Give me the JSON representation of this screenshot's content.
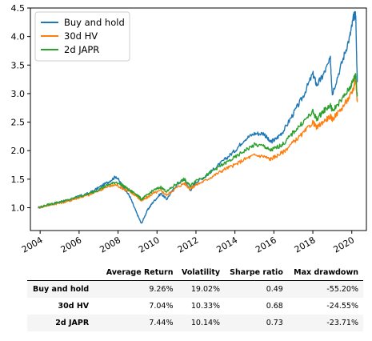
{
  "chart_data": {
    "type": "line",
    "title": "",
    "xlabel": "",
    "ylabel": "",
    "xlim": [
      2003.5,
      2020.75
    ],
    "ylim": [
      0.6,
      4.5
    ],
    "x_ticks": [
      2004,
      2006,
      2008,
      2010,
      2012,
      2014,
      2016,
      2018,
      2020
    ],
    "y_ticks": [
      1.0,
      1.5,
      2.0,
      2.5,
      3.0,
      3.5,
      4.0,
      4.5
    ],
    "y_tick_labels": [
      "1.0",
      "1.5",
      "2.0",
      "2.5",
      "3.0",
      "3.5",
      "4.0",
      "4.5"
    ],
    "grid": false,
    "legend": "top-left",
    "series": [
      {
        "name": "Buy and hold",
        "color": "#1f77b4",
        "x": [
          2003.9,
          2004.5,
          2005.0,
          2005.5,
          2006.0,
          2006.5,
          2007.0,
          2007.5,
          2007.9,
          2008.3,
          2008.6,
          2008.9,
          2009.2,
          2009.5,
          2009.8,
          2010.2,
          2010.5,
          2011.0,
          2011.4,
          2011.7,
          2012.0,
          2012.5,
          2013.0,
          2013.5,
          2014.0,
          2014.5,
          2015.0,
          2015.5,
          2015.8,
          2016.1,
          2016.5,
          2017.0,
          2017.5,
          2018.0,
          2018.2,
          2018.5,
          2018.9,
          2019.0,
          2019.5,
          2019.9,
          2020.1,
          2020.2,
          2020.28
        ],
        "y": [
          1.0,
          1.06,
          1.1,
          1.13,
          1.2,
          1.25,
          1.35,
          1.45,
          1.55,
          1.35,
          1.2,
          0.95,
          0.72,
          0.95,
          1.1,
          1.25,
          1.15,
          1.4,
          1.5,
          1.3,
          1.45,
          1.55,
          1.7,
          1.85,
          2.0,
          2.2,
          2.3,
          2.3,
          2.15,
          2.2,
          2.35,
          2.65,
          2.95,
          3.35,
          3.15,
          3.3,
          3.6,
          3.0,
          3.55,
          4.0,
          4.35,
          4.4,
          3.2
        ]
      },
      {
        "name": "30d HV",
        "color": "#ff7f0e",
        "x": [
          2003.9,
          2004.5,
          2005.0,
          2005.5,
          2006.0,
          2006.5,
          2007.0,
          2007.5,
          2007.9,
          2008.3,
          2008.6,
          2008.9,
          2009.2,
          2009.5,
          2009.8,
          2010.2,
          2010.5,
          2011.0,
          2011.4,
          2011.7,
          2012.0,
          2012.5,
          2013.0,
          2013.5,
          2014.0,
          2014.5,
          2015.0,
          2015.5,
          2015.8,
          2016.1,
          2016.5,
          2017.0,
          2017.5,
          2018.0,
          2018.2,
          2018.5,
          2018.9,
          2019.0,
          2019.5,
          2019.9,
          2020.1,
          2020.2,
          2020.28
        ],
        "y": [
          1.0,
          1.05,
          1.08,
          1.12,
          1.18,
          1.22,
          1.3,
          1.37,
          1.4,
          1.33,
          1.28,
          1.22,
          1.12,
          1.18,
          1.25,
          1.3,
          1.22,
          1.35,
          1.43,
          1.33,
          1.4,
          1.48,
          1.58,
          1.68,
          1.75,
          1.85,
          1.92,
          1.9,
          1.85,
          1.9,
          1.98,
          2.15,
          2.3,
          2.5,
          2.4,
          2.5,
          2.6,
          2.55,
          2.75,
          2.95,
          3.1,
          3.3,
          2.85
        ]
      },
      {
        "name": "2d JAPR",
        "color": "#2ca02c",
        "x": [
          2003.9,
          2004.5,
          2005.0,
          2005.5,
          2006.0,
          2006.5,
          2007.0,
          2007.5,
          2007.9,
          2008.3,
          2008.6,
          2008.9,
          2009.2,
          2009.5,
          2009.8,
          2010.2,
          2010.5,
          2011.0,
          2011.4,
          2011.7,
          2012.0,
          2012.5,
          2013.0,
          2013.5,
          2014.0,
          2014.5,
          2015.0,
          2015.5,
          2015.8,
          2016.1,
          2016.5,
          2017.0,
          2017.5,
          2018.0,
          2018.2,
          2018.5,
          2018.9,
          2019.0,
          2019.5,
          2019.9,
          2020.1,
          2020.2,
          2020.28
        ],
        "y": [
          1.0,
          1.06,
          1.1,
          1.14,
          1.2,
          1.24,
          1.32,
          1.4,
          1.45,
          1.38,
          1.3,
          1.25,
          1.15,
          1.22,
          1.3,
          1.36,
          1.28,
          1.42,
          1.5,
          1.38,
          1.48,
          1.56,
          1.68,
          1.78,
          1.88,
          2.0,
          2.1,
          2.08,
          2.0,
          2.05,
          2.12,
          2.32,
          2.5,
          2.68,
          2.55,
          2.68,
          2.8,
          2.7,
          2.9,
          3.1,
          3.25,
          3.35,
          2.95
        ]
      }
    ]
  },
  "table": {
    "columns": [
      "",
      "Average Return",
      "Volatility",
      "Sharpe ratio",
      "Max drawdown"
    ],
    "rows": [
      [
        "Buy and hold",
        "9.26%",
        "19.02%",
        "0.49",
        "-55.20%"
      ],
      [
        "30d HV",
        "7.04%",
        "10.33%",
        "0.68",
        "-24.55%"
      ],
      [
        "2d JAPR",
        "7.44%",
        "10.14%",
        "0.73",
        "-23.71%"
      ]
    ]
  }
}
